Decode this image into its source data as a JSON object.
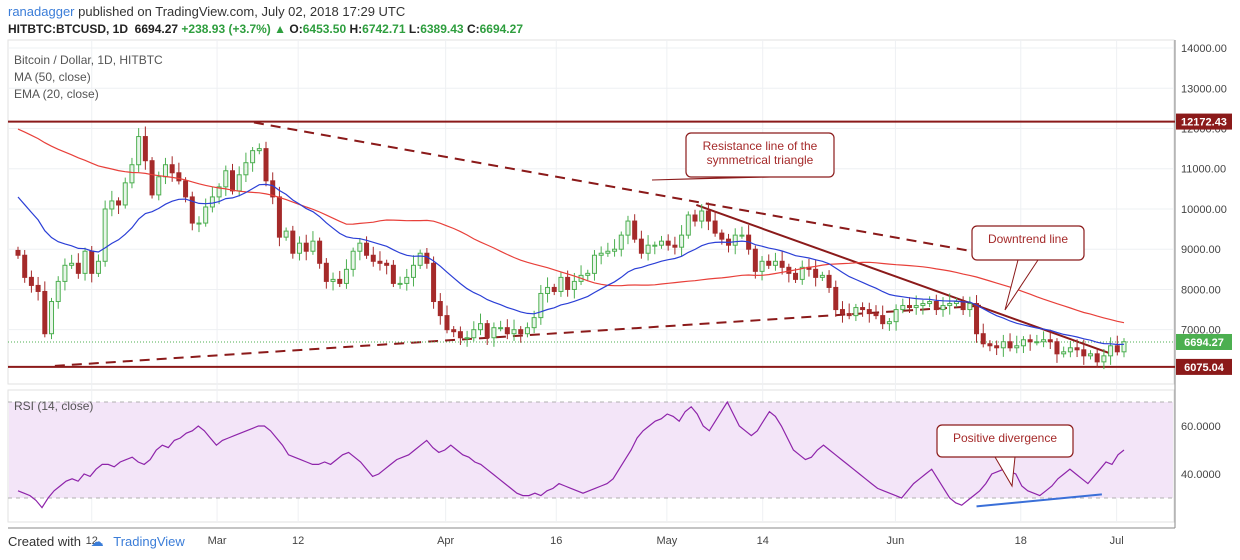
{
  "header": {
    "author": "ranadagger",
    "publish_text": "published on TradingView.com, July 02, 2018 17:29 UTC",
    "symbol": "HITBTC:BTCUSD, 1D",
    "last": "6694.27",
    "change": "+238.93 (+3.7%)",
    "open_label": "O:",
    "open": "6453.50",
    "high_label": "H:",
    "high": "6742.71",
    "low_label": "L:",
    "low": "6389.43",
    "close_label": "C:",
    "close": "6694.27"
  },
  "footer": {
    "created_with": "Created with",
    "brand": "TradingView"
  },
  "colors": {
    "up": "#4caf50",
    "down": "#a52a2a",
    "ma50": "#e8403a",
    "ema20": "#2b3fd6",
    "rsi": "#8e24aa",
    "rsi_band": "#f3e5f8",
    "level": "#8b1a1a",
    "trend": "#3a6fd8"
  },
  "chart_data": [
    {
      "type": "candlestick",
      "title": "Bitcoin / Dollar, 1D, HITBTC",
      "legend": [
        "Bitcoin / Dollar, 1D, HITBTC",
        "MA (50, close)",
        "EMA (20, close)"
      ],
      "ylim": [
        5650,
        14200
      ],
      "y_ticks": [
        "14000.00",
        "13000.00",
        "12000.00",
        "11000.00",
        "10000.00",
        "9000.00",
        "8000.00",
        "7000.00"
      ],
      "x_ticks": [
        "12",
        "Mar",
        "12",
        "Apr",
        "16",
        "May",
        "14",
        "Jun",
        "18",
        "Jul"
      ],
      "x_tick_dates": [
        "2018-02-12",
        "2018-03-01",
        "2018-03-12",
        "2018-04-01",
        "2018-04-16",
        "2018-05-01",
        "2018-05-14",
        "2018-06-01",
        "2018-06-18",
        "2018-07-01"
      ],
      "first_date": "2018-02-02",
      "last_date": "2018-07-02",
      "close": [
        8850,
        8300,
        8100,
        7950,
        6900,
        7700,
        8200,
        8600,
        8650,
        8400,
        8950,
        8400,
        8700,
        10000,
        10200,
        10100,
        10650,
        11100,
        11800,
        11200,
        10350,
        10800,
        11100,
        10900,
        10700,
        10300,
        9650,
        9650,
        10050,
        10300,
        10550,
        10950,
        10450,
        10850,
        11150,
        11450,
        11500,
        10700,
        10300,
        9300,
        9450,
        8900,
        9150,
        8950,
        9200,
        8650,
        8200,
        8250,
        8150,
        8500,
        8950,
        9150,
        8850,
        8700,
        8650,
        8600,
        8150,
        8150,
        8300,
        8600,
        8900,
        8650,
        7700,
        7350,
        7000,
        6950,
        6800,
        6800,
        7000,
        7150,
        6800,
        7050,
        7050,
        6900,
        7000,
        6900,
        7050,
        7300,
        7900,
        8050,
        7950,
        8300,
        8000,
        8200,
        8350,
        8400,
        8850,
        8900,
        8950,
        9000,
        9350,
        9700,
        9250,
        8900,
        9100,
        9100,
        9200,
        9100,
        9050,
        9350,
        9850,
        9700,
        9950,
        9700,
        9400,
        9250,
        9100,
        9350,
        9350,
        9000,
        8450,
        8700,
        8600,
        8700,
        8550,
        8400,
        8250,
        8550,
        8500,
        8300,
        8350,
        8050,
        7500,
        7400,
        7350,
        7550,
        7500,
        7400,
        7350,
        7150,
        7200,
        7500,
        7600,
        7550,
        7600,
        7650,
        7700,
        7500,
        7600,
        7650,
        7700,
        7500,
        7650,
        6900,
        6650,
        6600,
        6550,
        6700,
        6550,
        6600,
        6750,
        6700,
        6700,
        6750,
        6700,
        6400,
        6450,
        6550,
        6500,
        6350,
        6400,
        6200,
        6350,
        6600,
        6450,
        6700
      ],
      "ma50_end": 7180,
      "ema20_end": 6610,
      "levels": [
        {
          "label": "12172.43",
          "value": 12172.43
        },
        {
          "label": "6075.04",
          "value": 6075.04
        }
      ],
      "last_price_label": "6694.27",
      "resistance_line": [
        [
          "2018-03-06",
          12150
        ],
        [
          "2018-06-19",
          8700
        ]
      ],
      "support_line": [
        [
          "2018-02-07",
          6100
        ],
        [
          "2018-06-13",
          7600
        ]
      ],
      "downtrend_line": [
        [
          "2018-05-05",
          10100
        ],
        [
          "2018-06-30",
          6420
        ]
      ],
      "annotations": [
        {
          "text": [
            "Resistance line of the",
            "symmetrical triangle"
          ]
        },
        {
          "text": [
            "Downtrend line"
          ]
        }
      ]
    },
    {
      "type": "line",
      "title": "RSI (14, close)",
      "ylim": [
        20,
        75
      ],
      "y_ticks": [
        "60.0000",
        "40.0000"
      ],
      "band": [
        30,
        70
      ],
      "values": [
        33,
        32,
        31,
        29,
        26,
        30,
        33,
        35,
        37,
        38,
        37,
        40,
        39,
        42,
        44,
        44,
        43,
        45,
        46,
        47,
        45,
        44,
        46,
        50,
        52,
        51,
        54,
        55,
        57,
        58,
        60,
        58,
        55,
        52,
        54,
        55,
        56,
        57,
        58,
        59,
        60,
        60,
        58,
        55,
        52,
        48,
        47,
        46,
        45,
        44,
        44,
        45,
        44,
        46,
        48,
        49,
        47,
        45,
        42,
        39,
        40,
        42,
        44,
        46,
        47,
        48,
        50,
        52,
        54,
        51,
        49,
        50,
        52,
        50,
        48,
        47,
        45,
        44,
        42,
        40,
        38,
        36,
        34,
        32,
        31,
        31,
        32,
        31,
        33,
        34,
        36,
        35,
        34,
        33,
        32,
        33,
        34,
        35,
        36,
        38,
        42,
        46,
        50,
        55,
        58,
        60,
        62,
        63,
        65,
        64,
        62,
        66,
        68,
        65,
        60,
        58,
        62,
        66,
        70,
        65,
        60,
        58,
        56,
        58,
        62,
        66,
        64,
        60,
        55,
        50,
        48,
        46,
        47,
        50,
        52,
        50,
        48,
        46,
        44,
        42,
        40,
        38,
        36,
        34,
        33,
        32,
        31,
        30,
        33,
        36,
        38,
        40,
        42,
        38,
        34,
        30,
        28,
        27,
        29,
        31,
        33,
        36,
        40,
        41,
        42,
        41,
        40,
        35,
        33,
        32,
        31,
        33,
        35,
        38,
        40,
        42,
        40,
        38,
        36,
        39,
        42,
        45,
        44,
        48,
        50
      ],
      "divergence_line": [
        [
          "2018-06-12",
          26.5
        ],
        [
          "2018-06-29",
          31.5
        ]
      ],
      "annotations": [
        {
          "text": [
            "Positive divergence"
          ]
        }
      ]
    }
  ]
}
